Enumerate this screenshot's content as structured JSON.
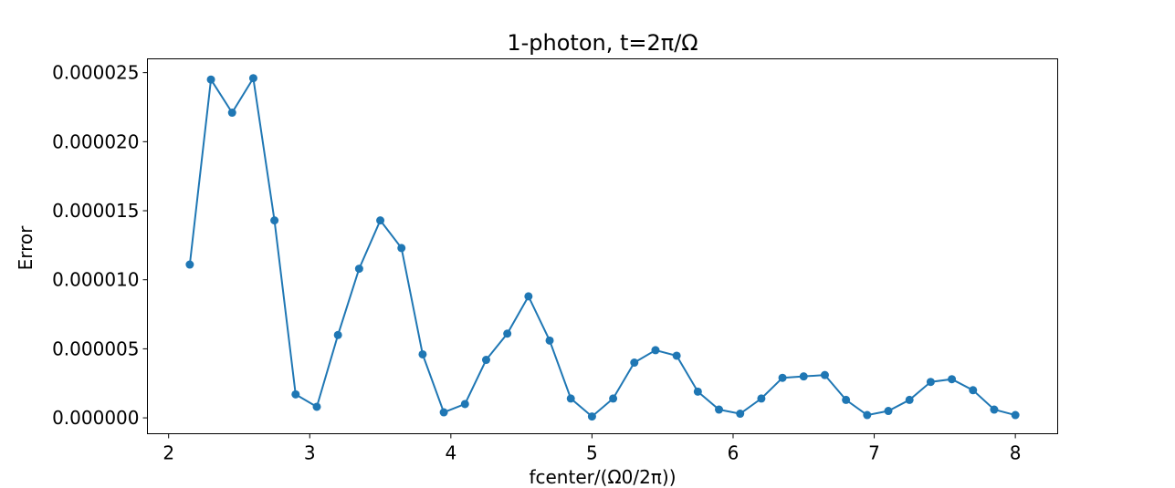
{
  "chart_data": {
    "type": "line",
    "title": "1-photon, t=2π/Ω",
    "xlabel": "fcenter/(Ω0/2π))",
    "ylabel": "Error",
    "xlim": [
      1.85,
      8.3
    ],
    "ylim": [
      -1.15e-06,
      2.6e-05
    ],
    "xticks": [
      2,
      3,
      4,
      5,
      6,
      7,
      8
    ],
    "xtick_labels": [
      "2",
      "3",
      "4",
      "5",
      "6",
      "7",
      "8"
    ],
    "yticks": [
      0,
      5e-06,
      1e-05,
      1.5e-05,
      2e-05,
      2.5e-05
    ],
    "ytick_labels": [
      "0.000000",
      "0.000005",
      "0.000010",
      "0.000015",
      "0.000020",
      "0.000025"
    ],
    "grid": false,
    "color": "#1f77b4",
    "marker": "circle",
    "series": [
      {
        "x": [
          2.15,
          2.3,
          2.45,
          2.6,
          2.75,
          2.9,
          3.05,
          3.2,
          3.35,
          3.5,
          3.65,
          3.8,
          3.95,
          4.1,
          4.25,
          4.4,
          4.55,
          4.7,
          4.85,
          5.0,
          5.15,
          5.3,
          5.45,
          5.6,
          5.75,
          5.9,
          6.05,
          6.2,
          6.35,
          6.5,
          6.65,
          6.8,
          6.95,
          7.1,
          7.25,
          7.4,
          7.55,
          7.7,
          7.85,
          8.0
        ],
        "values": [
          1.11e-05,
          2.45e-05,
          2.21e-05,
          2.46e-05,
          1.43e-05,
          1.7e-06,
          8e-07,
          6e-06,
          1.08e-05,
          1.43e-05,
          1.23e-05,
          4.6e-06,
          4e-07,
          1e-06,
          4.2e-06,
          6.1e-06,
          8.8e-06,
          5.6e-06,
          1.4e-06,
          1e-07,
          1.4e-06,
          4e-06,
          4.9e-06,
          4.5e-06,
          1.9e-06,
          6e-07,
          3e-07,
          1.4e-06,
          2.9e-06,
          3e-06,
          3.1e-06,
          1.3e-06,
          2e-07,
          5e-07,
          1.3e-06,
          2.6e-06,
          2.8e-06,
          2e-06,
          6e-07,
          2e-07
        ]
      }
    ]
  }
}
